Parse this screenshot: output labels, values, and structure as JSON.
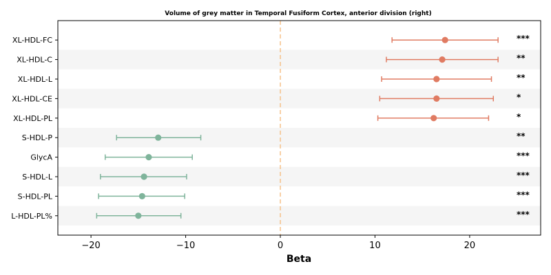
{
  "chart_data": {
    "type": "forest",
    "title": "Volume of grey matter in Temporal Fusiform Cortex, anterior division (right)",
    "xlabel": "Beta",
    "xlim": [
      -23.5,
      27.5
    ],
    "xticks": [
      -20,
      -10,
      0,
      10,
      20
    ],
    "xtick_labels": [
      "−20",
      "−10",
      "0",
      "10",
      "20"
    ],
    "reference_line": 0,
    "colors": {
      "positive": "#e07b62",
      "negative": "#7fb49b",
      "reference": "#f5c087",
      "stripe": "#f5f5f5"
    },
    "rows": [
      {
        "label": "XL-HDL-FC",
        "beta": 17.4,
        "ci": [
          11.8,
          23.0
        ],
        "sig": "***"
      },
      {
        "label": "XL-HDL-C",
        "beta": 17.1,
        "ci": [
          11.2,
          23.0
        ],
        "sig": "**"
      },
      {
        "label": "XL-HDL-L",
        "beta": 16.5,
        "ci": [
          10.7,
          22.3
        ],
        "sig": "**"
      },
      {
        "label": "XL-HDL-CE",
        "beta": 16.5,
        "ci": [
          10.5,
          22.5
        ],
        "sig": "*"
      },
      {
        "label": "XL-HDL-PL",
        "beta": 16.2,
        "ci": [
          10.3,
          22.0
        ],
        "sig": "*"
      },
      {
        "label": "S-HDL-P",
        "beta": -12.9,
        "ci": [
          -17.3,
          -8.4
        ],
        "sig": "**"
      },
      {
        "label": "GlycA",
        "beta": -13.9,
        "ci": [
          -18.5,
          -9.3
        ],
        "sig": "***"
      },
      {
        "label": "S-HDL-L",
        "beta": -14.4,
        "ci": [
          -19.0,
          -9.9
        ],
        "sig": "***"
      },
      {
        "label": "S-HDL-PL",
        "beta": -14.6,
        "ci": [
          -19.2,
          -10.1
        ],
        "sig": "***"
      },
      {
        "label": "L-HDL-PL%",
        "beta": -15.0,
        "ci": [
          -19.4,
          -10.5
        ],
        "sig": "***"
      }
    ]
  }
}
